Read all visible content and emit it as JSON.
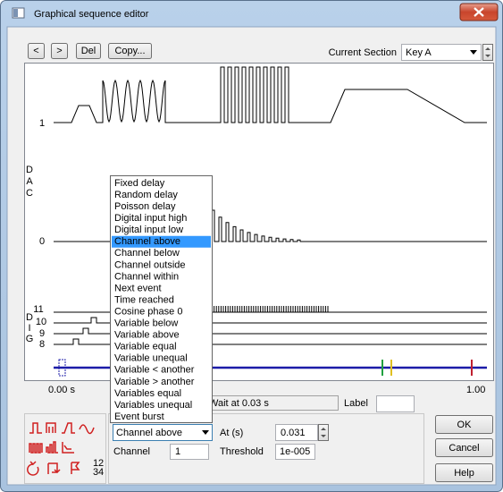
{
  "window": {
    "title": "Graphical sequence editor"
  },
  "toolbar": {
    "prev": "<",
    "next": ">",
    "delete": "Del",
    "copy": "Copy...",
    "section_label": "Current Section",
    "section_value": "Key A"
  },
  "dac": {
    "label": [
      "D",
      "A",
      "C"
    ],
    "channels": [
      "1",
      "0"
    ]
  },
  "dig": {
    "label": [
      "D",
      "I",
      "G"
    ],
    "channels": [
      "11",
      "10",
      "9",
      "8"
    ]
  },
  "time_axis": {
    "start": "0.00 s",
    "end": "1.00"
  },
  "status": {
    "text": "Wait at 0.03 s",
    "label_caption": "Label"
  },
  "dropdown": {
    "items": [
      "Fixed delay",
      "Random delay",
      "Poisson delay",
      "Digital input high",
      "Digital input low",
      "Channel above",
      "Channel below",
      "Channel outside",
      "Channel within",
      "Next event",
      "Time reached",
      "Cosine phase 0",
      "Variable below",
      "Variable above",
      "Variable equal",
      "Variable unequal",
      "Variable < another",
      "Variable > another",
      "Variables equal",
      "Variables unequal",
      "Event burst"
    ],
    "selected": "Channel above"
  },
  "properties": {
    "at_label": "At (s)",
    "at_value": "0.031",
    "channel_label": "Channel",
    "channel_value": "1",
    "threshold_label": "Threshold",
    "threshold_value": "1e-005"
  },
  "icons": {
    "numbers": [
      "1",
      "2",
      "3",
      "4"
    ]
  },
  "buttons": {
    "ok": "OK",
    "cancel": "Cancel",
    "help": "Help"
  }
}
